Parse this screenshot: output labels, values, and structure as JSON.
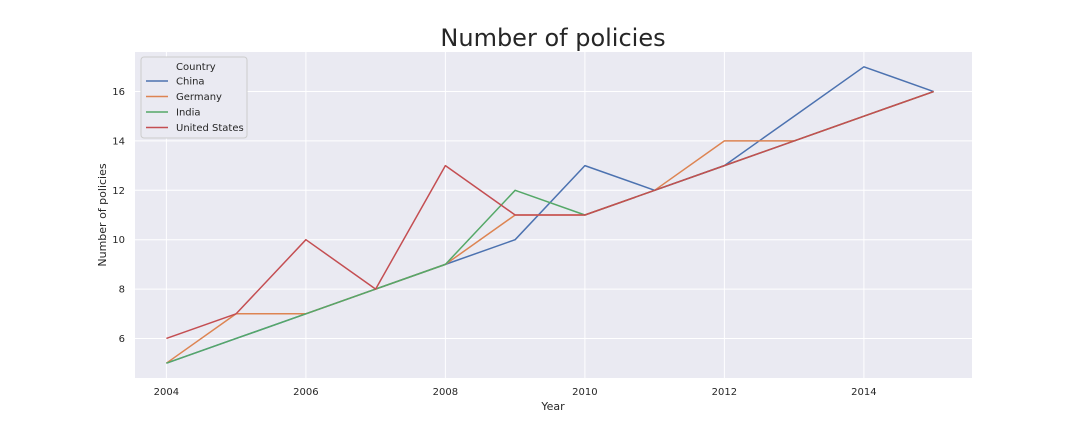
{
  "chart_data": {
    "type": "line",
    "title": "Number of policies",
    "xlabel": "Year",
    "ylabel": "Number of policies",
    "x": [
      2004,
      2005,
      2006,
      2007,
      2008,
      2009,
      2010,
      2011,
      2012,
      2013,
      2014,
      2015
    ],
    "xlim": [
      2003.55,
      2015.55
    ],
    "ylim": [
      4.4,
      17.6
    ],
    "x_ticks": [
      2004,
      2006,
      2008,
      2010,
      2012,
      2014
    ],
    "y_ticks": [
      6,
      8,
      10,
      12,
      14,
      16
    ],
    "grid": true,
    "legend": {
      "title": "Country",
      "placement": "top-left"
    },
    "series": [
      {
        "name": "China",
        "color": "#4c72b0",
        "values": [
          5,
          6,
          7,
          8,
          9,
          10,
          13,
          12,
          13,
          15,
          17,
          16
        ]
      },
      {
        "name": "Germany",
        "color": "#dd8452",
        "values": [
          5,
          7,
          7,
          8,
          9,
          11,
          11,
          12,
          14,
          14,
          15,
          16
        ]
      },
      {
        "name": "India",
        "color": "#55a868",
        "values": [
          5,
          6,
          7,
          8,
          9,
          12,
          11,
          12,
          13,
          14,
          15,
          16
        ]
      },
      {
        "name": "United States",
        "color": "#c44e52",
        "values": [
          6,
          7,
          10,
          8,
          13,
          11,
          11,
          12,
          13,
          14,
          15,
          16
        ]
      }
    ]
  }
}
